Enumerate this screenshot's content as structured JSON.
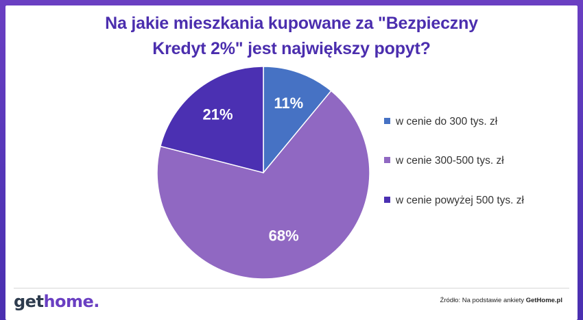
{
  "title_lines": [
    "Na jakie mieszkania kupowane za \"Bezpieczny",
    "Kredyt 2%\" jest największy popyt?"
  ],
  "chart_data": {
    "type": "pie",
    "title": "Na jakie mieszkania kupowane za \"Bezpieczny Kredyt 2%\" jest największy popyt?",
    "categories": [
      "w cenie do 300 tys. zł",
      "w cenie 300-500 tys. zł",
      "w cenie powyżej 500 tys. zł"
    ],
    "values": [
      11,
      68,
      21
    ],
    "labels": [
      "11%",
      "68%",
      "21%"
    ],
    "colors": [
      "#4672c4",
      "#9068c2",
      "#4b30b2"
    ],
    "legend_position": "right"
  },
  "footer": {
    "logo_part1": "get",
    "logo_part2": "home",
    "logo_dot": ".",
    "source_prefix": "Źródło: Na podstawie ankiety",
    "source_brand": "GetHome.pl"
  }
}
